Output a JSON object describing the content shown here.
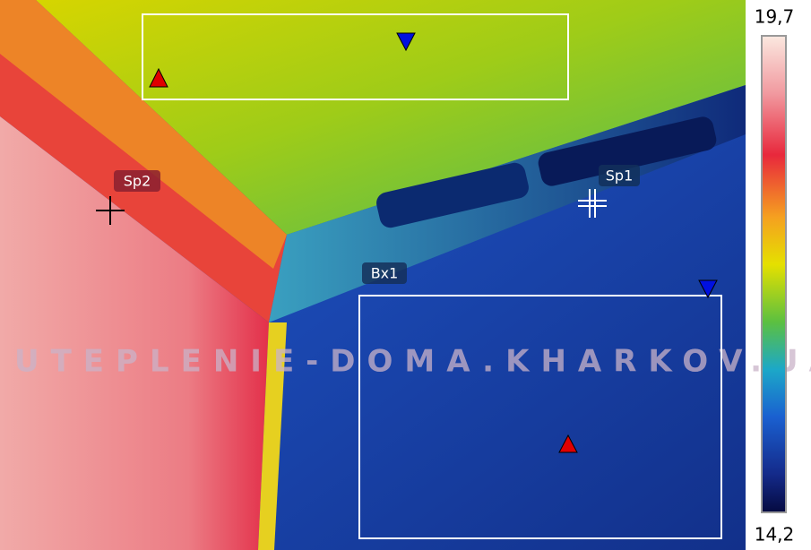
{
  "scale": {
    "max": "19,7",
    "min": "14,2"
  },
  "markers": [
    {
      "label": "Sp2"
    },
    {
      "label": "Sp1"
    },
    {
      "label": "Bx1"
    }
  ],
  "watermark": "UTEPLENIE-DOMA.KHARKOV.UA"
}
